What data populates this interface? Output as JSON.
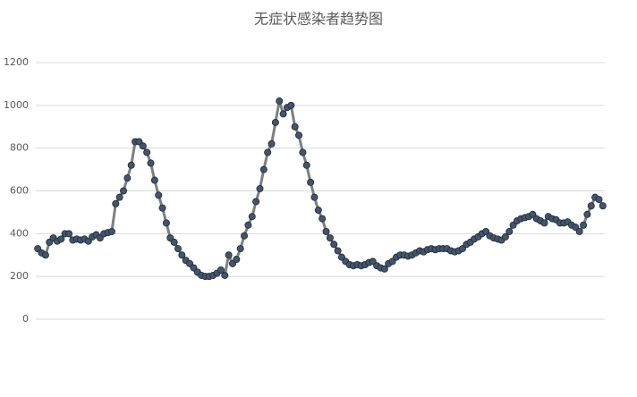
{
  "chart_data": {
    "type": "line",
    "title": "无症状感染者趋势图",
    "categories": [
      null,
      null,
      null,
      null,
      null,
      null,
      null,
      null,
      null,
      null,
      null,
      null,
      null,
      null,
      null,
      null,
      null,
      null,
      null,
      null,
      null,
      null,
      null,
      null,
      null,
      null,
      null,
      null,
      null,
      null,
      null,
      null,
      null,
      null,
      null,
      null,
      null,
      null,
      null,
      null,
      null,
      null,
      null,
      null,
      null,
      null,
      null,
      null,
      null,
      null,
      null,
      null,
      null,
      null,
      null,
      null,
      null,
      null,
      null,
      null,
      null,
      null,
      null,
      null,
      null,
      null,
      null,
      null,
      null,
      null,
      null,
      null,
      null,
      null,
      null,
      null,
      null,
      null,
      null,
      null,
      null,
      null,
      null,
      null,
      null,
      null,
      null,
      null,
      null,
      null,
      null,
      null,
      null,
      null,
      null,
      null,
      null,
      null,
      null,
      null,
      null,
      null,
      null,
      null,
      null,
      null,
      null,
      null,
      null,
      null,
      null,
      null,
      null,
      null,
      null,
      null,
      null,
      null,
      null,
      null,
      null,
      null,
      null,
      null,
      null,
      null,
      null,
      null,
      null,
      null,
      null,
      null,
      null,
      null,
      null,
      null,
      null,
      null,
      null,
      null,
      null,
      null,
      null,
      null,
      null,
      null
    ],
    "values": [
      330,
      310,
      300,
      360,
      380,
      365,
      375,
      400,
      400,
      370,
      375,
      370,
      375,
      365,
      385,
      395,
      380,
      400,
      405,
      410,
      540,
      570,
      600,
      660,
      720,
      830,
      830,
      810,
      780,
      730,
      650,
      580,
      520,
      450,
      380,
      360,
      330,
      300,
      275,
      260,
      240,
      220,
      205,
      200,
      200,
      205,
      215,
      230,
      205,
      300,
      260,
      280,
      330,
      390,
      440,
      480,
      550,
      610,
      700,
      780,
      820,
      920,
      1020,
      960,
      990,
      1000,
      900,
      860,
      780,
      720,
      640,
      570,
      510,
      470,
      410,
      380,
      350,
      320,
      290,
      270,
      255,
      250,
      255,
      250,
      255,
      265,
      270,
      250,
      240,
      235,
      260,
      270,
      290,
      300,
      300,
      295,
      300,
      310,
      320,
      315,
      325,
      330,
      325,
      330,
      330,
      330,
      320,
      315,
      320,
      330,
      350,
      360,
      375,
      385,
      400,
      410,
      390,
      380,
      375,
      370,
      385,
      410,
      440,
      460,
      470,
      475,
      480,
      490,
      470,
      460,
      450,
      480,
      470,
      465,
      450,
      450,
      455,
      440,
      430,
      410,
      440,
      490,
      530,
      570,
      560,
      530
    ],
    "color": "#7f7f7f",
    "marker_color": "#44546a",
    "ylim": [
      0,
      1200
    ],
    "yticks": [
      0,
      200,
      400,
      600,
      800,
      1000,
      1200
    ],
    "grid": true
  }
}
